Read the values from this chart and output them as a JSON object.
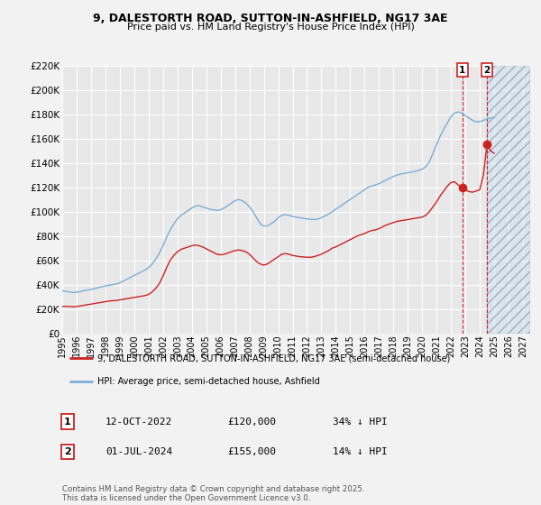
{
  "title": "9, DALESTORTH ROAD, SUTTON-IN-ASHFIELD, NG17 3AE",
  "subtitle": "Price paid vs. HM Land Registry's House Price Index (HPI)",
  "ylim": [
    0,
    220000
  ],
  "yticks": [
    0,
    20000,
    40000,
    60000,
    80000,
    100000,
    120000,
    140000,
    160000,
    180000,
    200000,
    220000
  ],
  "ytick_labels": [
    "£0",
    "£20K",
    "£40K",
    "£60K",
    "£80K",
    "£100K",
    "£120K",
    "£140K",
    "£160K",
    "£180K",
    "£200K",
    "£220K"
  ],
  "xlim_start": 1995.0,
  "xlim_end": 2027.5,
  "background_color": "#f2f2f2",
  "plot_bg_color": "#e8e8e8",
  "grid_color": "#ffffff",
  "hpi_line_color": "#7aadda",
  "price_line_color": "#cc2222",
  "transaction1_date": 2022.79,
  "transaction1_price": 120000,
  "transaction2_date": 2024.5,
  "transaction2_price": 155000,
  "legend_line1": "9, DALESTORTH ROAD, SUTTON-IN-ASHFIELD, NG17 3AE (semi-detached house)",
  "legend_line2": "HPI: Average price, semi-detached house, Ashfield",
  "ann1_label": "1",
  "ann1_date": "12-OCT-2022",
  "ann1_price": "£120,000",
  "ann1_hpi": "34% ↓ HPI",
  "ann2_label": "2",
  "ann2_date": "01-JUL-2024",
  "ann2_price": "£155,000",
  "ann2_hpi": "14% ↓ HPI",
  "footer": "Contains HM Land Registry data © Crown copyright and database right 2025.\nThis data is licensed under the Open Government Licence v3.0.",
  "hpi_data": [
    [
      1995.0,
      35000
    ],
    [
      1995.25,
      34500
    ],
    [
      1995.5,
      34000
    ],
    [
      1995.75,
      33500
    ],
    [
      1996.0,
      33800
    ],
    [
      1996.25,
      34200
    ],
    [
      1996.5,
      35000
    ],
    [
      1996.75,
      35500
    ],
    [
      1997.0,
      36000
    ],
    [
      1997.25,
      36800
    ],
    [
      1997.5,
      37500
    ],
    [
      1997.75,
      38200
    ],
    [
      1998.0,
      39000
    ],
    [
      1998.25,
      39500
    ],
    [
      1998.5,
      40000
    ],
    [
      1998.75,
      40500
    ],
    [
      1999.0,
      41500
    ],
    [
      1999.25,
      43000
    ],
    [
      1999.5,
      44500
    ],
    [
      1999.75,
      46000
    ],
    [
      2000.0,
      47500
    ],
    [
      2000.25,
      49000
    ],
    [
      2000.5,
      50500
    ],
    [
      2000.75,
      52000
    ],
    [
      2001.0,
      54000
    ],
    [
      2001.25,
      57000
    ],
    [
      2001.5,
      61000
    ],
    [
      2001.75,
      66000
    ],
    [
      2002.0,
      72000
    ],
    [
      2002.25,
      79000
    ],
    [
      2002.5,
      85000
    ],
    [
      2002.75,
      90000
    ],
    [
      2003.0,
      94000
    ],
    [
      2003.25,
      97000
    ],
    [
      2003.5,
      99000
    ],
    [
      2003.75,
      101000
    ],
    [
      2004.0,
      103000
    ],
    [
      2004.25,
      104500
    ],
    [
      2004.5,
      105000
    ],
    [
      2004.75,
      104000
    ],
    [
      2005.0,
      103000
    ],
    [
      2005.25,
      102000
    ],
    [
      2005.5,
      101500
    ],
    [
      2005.75,
      101000
    ],
    [
      2006.0,
      101500
    ],
    [
      2006.25,
      103000
    ],
    [
      2006.5,
      105000
    ],
    [
      2006.75,
      107000
    ],
    [
      2007.0,
      109000
    ],
    [
      2007.25,
      110000
    ],
    [
      2007.5,
      109000
    ],
    [
      2007.75,
      107000
    ],
    [
      2008.0,
      104000
    ],
    [
      2008.25,
      100000
    ],
    [
      2008.5,
      95000
    ],
    [
      2008.75,
      90000
    ],
    [
      2009.0,
      88000
    ],
    [
      2009.25,
      88500
    ],
    [
      2009.5,
      90000
    ],
    [
      2009.75,
      92000
    ],
    [
      2010.0,
      95000
    ],
    [
      2010.25,
      97000
    ],
    [
      2010.5,
      97500
    ],
    [
      2010.75,
      97000
    ],
    [
      2011.0,
      96000
    ],
    [
      2011.25,
      95500
    ],
    [
      2011.5,
      95000
    ],
    [
      2011.75,
      94500
    ],
    [
      2012.0,
      94000
    ],
    [
      2012.25,
      93800
    ],
    [
      2012.5,
      93500
    ],
    [
      2012.75,
      94000
    ],
    [
      2013.0,
      95000
    ],
    [
      2013.25,
      96500
    ],
    [
      2013.5,
      98000
    ],
    [
      2013.75,
      100000
    ],
    [
      2014.0,
      102000
    ],
    [
      2014.25,
      104000
    ],
    [
      2014.5,
      106000
    ],
    [
      2014.75,
      108000
    ],
    [
      2015.0,
      110000
    ],
    [
      2015.25,
      112000
    ],
    [
      2015.5,
      114000
    ],
    [
      2015.75,
      116000
    ],
    [
      2016.0,
      118000
    ],
    [
      2016.25,
      120000
    ],
    [
      2016.5,
      121000
    ],
    [
      2016.75,
      122000
    ],
    [
      2017.0,
      123000
    ],
    [
      2017.25,
      124500
    ],
    [
      2017.5,
      126000
    ],
    [
      2017.75,
      127500
    ],
    [
      2018.0,
      129000
    ],
    [
      2018.25,
      130000
    ],
    [
      2018.5,
      131000
    ],
    [
      2018.75,
      131500
    ],
    [
      2019.0,
      132000
    ],
    [
      2019.25,
      132500
    ],
    [
      2019.5,
      133000
    ],
    [
      2019.75,
      134000
    ],
    [
      2020.0,
      135000
    ],
    [
      2020.25,
      137000
    ],
    [
      2020.5,
      141000
    ],
    [
      2020.75,
      148000
    ],
    [
      2021.0,
      155000
    ],
    [
      2021.25,
      162000
    ],
    [
      2021.5,
      168000
    ],
    [
      2021.75,
      173000
    ],
    [
      2022.0,
      178000
    ],
    [
      2022.25,
      181000
    ],
    [
      2022.5,
      182000
    ],
    [
      2022.75,
      181000
    ],
    [
      2023.0,
      179000
    ],
    [
      2023.25,
      177000
    ],
    [
      2023.5,
      175000
    ],
    [
      2023.75,
      174000
    ],
    [
      2024.0,
      174000
    ],
    [
      2024.25,
      175000
    ],
    [
      2024.5,
      176000
    ],
    [
      2024.75,
      177000
    ],
    [
      2025.0,
      177000
    ]
  ],
  "price_data": [
    [
      1995.0,
      22000
    ],
    [
      1995.25,
      22200
    ],
    [
      1995.5,
      22000
    ],
    [
      1995.75,
      21800
    ],
    [
      1996.0,
      22000
    ],
    [
      1996.25,
      22500
    ],
    [
      1996.5,
      23000
    ],
    [
      1996.75,
      23500
    ],
    [
      1997.0,
      24000
    ],
    [
      1997.25,
      24500
    ],
    [
      1997.5,
      25000
    ],
    [
      1997.75,
      25500
    ],
    [
      1998.0,
      26000
    ],
    [
      1998.25,
      26500
    ],
    [
      1998.5,
      26800
    ],
    [
      1998.75,
      27000
    ],
    [
      1999.0,
      27500
    ],
    [
      1999.25,
      28000
    ],
    [
      1999.5,
      28500
    ],
    [
      1999.75,
      29000
    ],
    [
      2000.0,
      29500
    ],
    [
      2000.25,
      30000
    ],
    [
      2000.5,
      30500
    ],
    [
      2000.75,
      31000
    ],
    [
      2001.0,
      32000
    ],
    [
      2001.25,
      34000
    ],
    [
      2001.5,
      37000
    ],
    [
      2001.75,
      41000
    ],
    [
      2002.0,
      47000
    ],
    [
      2002.25,
      54000
    ],
    [
      2002.5,
      60000
    ],
    [
      2002.75,
      64000
    ],
    [
      2003.0,
      67000
    ],
    [
      2003.25,
      69000
    ],
    [
      2003.5,
      70000
    ],
    [
      2003.75,
      71000
    ],
    [
      2004.0,
      72000
    ],
    [
      2004.25,
      72500
    ],
    [
      2004.5,
      72000
    ],
    [
      2004.75,
      71000
    ],
    [
      2005.0,
      69500
    ],
    [
      2005.25,
      68000
    ],
    [
      2005.5,
      66500
    ],
    [
      2005.75,
      65000
    ],
    [
      2006.0,
      64500
    ],
    [
      2006.25,
      65000
    ],
    [
      2006.5,
      66000
    ],
    [
      2006.75,
      67000
    ],
    [
      2007.0,
      68000
    ],
    [
      2007.25,
      68500
    ],
    [
      2007.5,
      68000
    ],
    [
      2007.75,
      67000
    ],
    [
      2008.0,
      65000
    ],
    [
      2008.25,
      62000
    ],
    [
      2008.5,
      59000
    ],
    [
      2008.75,
      57000
    ],
    [
      2009.0,
      56000
    ],
    [
      2009.25,
      57000
    ],
    [
      2009.5,
      59000
    ],
    [
      2009.75,
      61000
    ],
    [
      2010.0,
      63000
    ],
    [
      2010.25,
      65000
    ],
    [
      2010.5,
      65500
    ],
    [
      2010.75,
      65000
    ],
    [
      2011.0,
      64000
    ],
    [
      2011.25,
      63500
    ],
    [
      2011.5,
      63000
    ],
    [
      2011.75,
      62800
    ],
    [
      2012.0,
      62500
    ],
    [
      2012.25,
      62500
    ],
    [
      2012.5,
      63000
    ],
    [
      2012.75,
      64000
    ],
    [
      2013.0,
      65000
    ],
    [
      2013.25,
      66500
    ],
    [
      2013.5,
      68000
    ],
    [
      2013.75,
      70000
    ],
    [
      2014.0,
      71000
    ],
    [
      2014.25,
      72500
    ],
    [
      2014.5,
      74000
    ],
    [
      2014.75,
      75500
    ],
    [
      2015.0,
      77000
    ],
    [
      2015.25,
      78500
    ],
    [
      2015.5,
      80000
    ],
    [
      2015.75,
      81000
    ],
    [
      2016.0,
      82000
    ],
    [
      2016.25,
      83500
    ],
    [
      2016.5,
      84500
    ],
    [
      2016.75,
      85000
    ],
    [
      2017.0,
      86000
    ],
    [
      2017.25,
      87500
    ],
    [
      2017.5,
      89000
    ],
    [
      2017.75,
      90000
    ],
    [
      2018.0,
      91000
    ],
    [
      2018.25,
      92000
    ],
    [
      2018.5,
      92500
    ],
    [
      2018.75,
      93000
    ],
    [
      2019.0,
      93500
    ],
    [
      2019.25,
      94000
    ],
    [
      2019.5,
      94500
    ],
    [
      2019.75,
      95000
    ],
    [
      2020.0,
      95500
    ],
    [
      2020.25,
      97000
    ],
    [
      2020.5,
      100000
    ],
    [
      2020.75,
      104000
    ],
    [
      2021.0,
      108000
    ],
    [
      2021.25,
      113000
    ],
    [
      2021.5,
      117000
    ],
    [
      2021.75,
      121000
    ],
    [
      2022.0,
      124000
    ],
    [
      2022.25,
      124500
    ],
    [
      2022.5,
      122000
    ],
    [
      2022.75,
      120000
    ],
    [
      2023.0,
      118000
    ],
    [
      2023.25,
      116500
    ],
    [
      2023.5,
      116000
    ],
    [
      2023.75,
      117000
    ],
    [
      2024.0,
      118000
    ],
    [
      2024.25,
      130000
    ],
    [
      2024.5,
      155000
    ],
    [
      2024.75,
      150000
    ],
    [
      2025.0,
      148000
    ]
  ]
}
